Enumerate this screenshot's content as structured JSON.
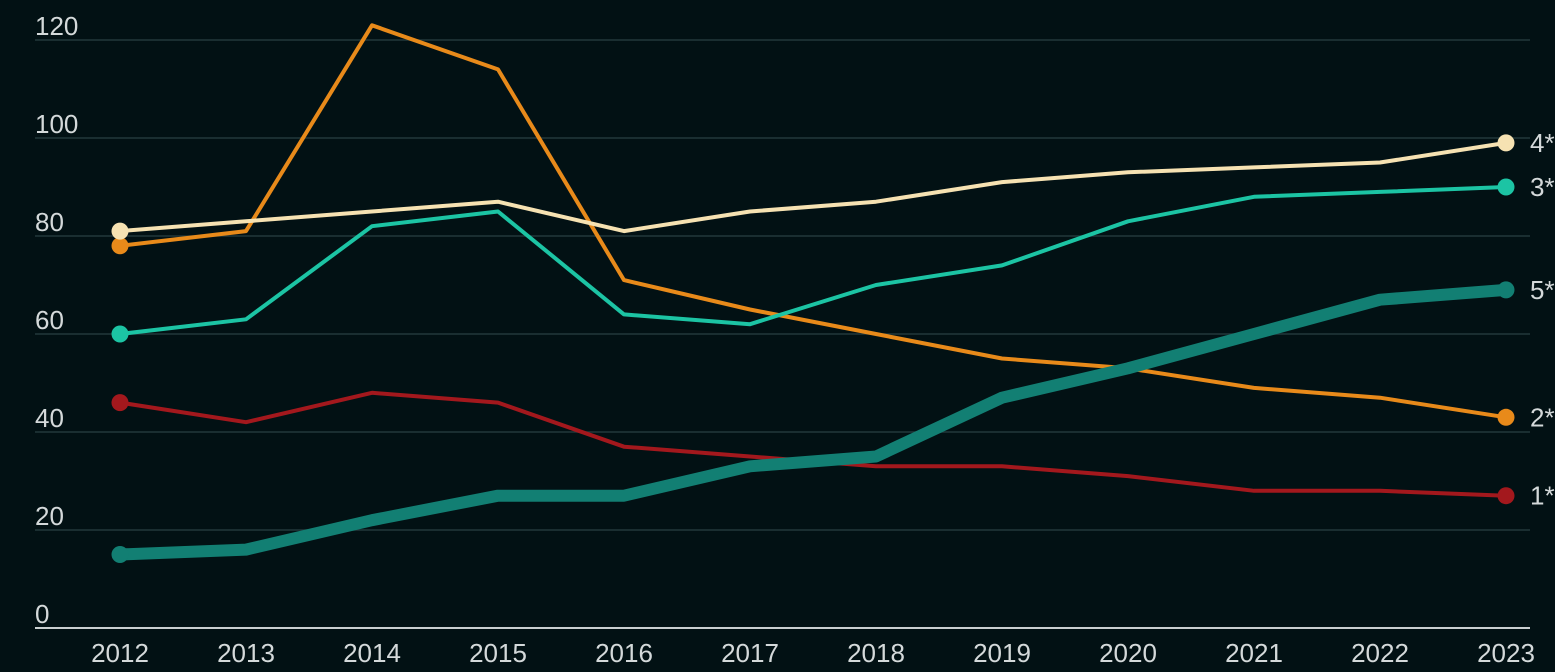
{
  "chart_data": {
    "type": "line",
    "title": "",
    "xlabel": "",
    "ylabel": "",
    "x": [
      "2012",
      "2013",
      "2014",
      "2015",
      "2016",
      "2017",
      "2018",
      "2019",
      "2020",
      "2021",
      "2022",
      "2023"
    ],
    "y_ticks": [
      "0",
      "20",
      "40",
      "60",
      "80",
      "100",
      "120"
    ],
    "ylim": [
      0,
      120
    ],
    "grid": true,
    "background": "#021114",
    "series": [
      {
        "label": "1*",
        "color": "#a3181d",
        "emphasis": "normal",
        "values": [
          46,
          42,
          48,
          46,
          37,
          35,
          33,
          33,
          31,
          28,
          28,
          27
        ]
      },
      {
        "label": "2*",
        "color": "#e88a1a",
        "emphasis": "normal",
        "values": [
          78,
          81,
          123,
          114,
          71,
          65,
          60,
          55,
          53,
          49,
          47,
          43
        ]
      },
      {
        "label": "3*",
        "color": "#1cc4a4",
        "emphasis": "normal",
        "values": [
          60,
          63,
          82,
          85,
          64,
          62,
          70,
          74,
          83,
          88,
          89,
          90
        ]
      },
      {
        "label": "4*",
        "color": "#f6e2b2",
        "emphasis": "normal",
        "values": [
          81,
          83,
          85,
          87,
          81,
          85,
          87,
          91,
          93,
          94,
          95,
          99
        ]
      },
      {
        "label": "5*",
        "color": "#127f73",
        "emphasis": "bold",
        "values": [
          15,
          16,
          22,
          27,
          27,
          33,
          35,
          47,
          53,
          60,
          67,
          69
        ]
      }
    ]
  }
}
